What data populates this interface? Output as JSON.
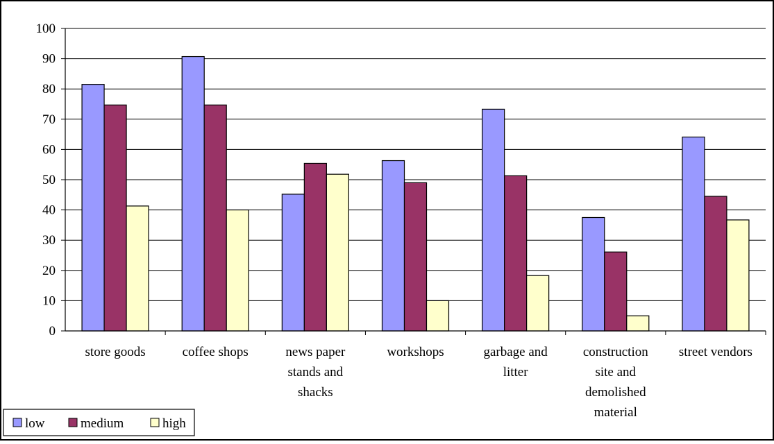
{
  "chart_data": {
    "type": "bar",
    "title": "",
    "xlabel": "",
    "ylabel": "",
    "ylim": [
      0,
      100
    ],
    "yticks": [
      0,
      10,
      20,
      30,
      40,
      50,
      60,
      70,
      80,
      90,
      100
    ],
    "grid": "horizontal",
    "legend_position": "bottom-left",
    "categories": [
      [
        "store goods"
      ],
      [
        "coffee shops"
      ],
      [
        "news paper",
        "stands and",
        "shacks"
      ],
      [
        "workshops"
      ],
      [
        "garbage and",
        "litter"
      ],
      [
        "construction",
        "site and",
        "demolished",
        "material"
      ],
      [
        "street vendors"
      ]
    ],
    "series": [
      {
        "name": "low",
        "color": "#9999ff",
        "values": [
          81.5,
          90.7,
          45.2,
          56.3,
          73.3,
          37.5,
          64.1
        ]
      },
      {
        "name": "medium",
        "color": "#993366",
        "values": [
          74.7,
          74.7,
          55.4,
          49.0,
          51.3,
          26.1,
          44.5
        ]
      },
      {
        "name": "high",
        "color": "#ffffcc",
        "values": [
          41.3,
          40.0,
          51.8,
          10.0,
          18.3,
          5.0,
          36.7
        ]
      }
    ]
  }
}
